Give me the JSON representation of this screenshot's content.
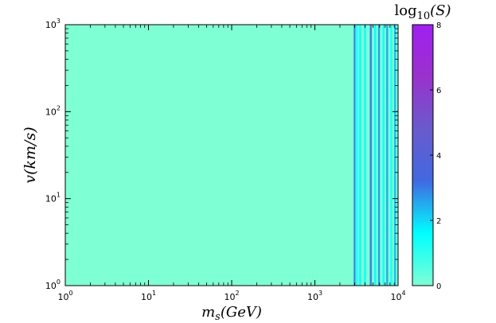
{
  "chart_data": {
    "type": "heatmap",
    "title": "log10(S)",
    "title_parts": {
      "base": "log",
      "sub": "10",
      "arg": "(S)"
    },
    "xlabel": "m_s(GeV)",
    "xlabel_parts": {
      "main": "m",
      "sub": "s",
      "rest": "(GeV)"
    },
    "ylabel": "v(km/s)",
    "x_scale": "log",
    "y_scale": "log",
    "xlim": [
      1,
      10000
    ],
    "ylim": [
      1,
      1000
    ],
    "x_ticks": [
      {
        "value": 1,
        "base": "10",
        "exp": "0"
      },
      {
        "value": 10,
        "base": "10",
        "exp": "1"
      },
      {
        "value": 100,
        "base": "10",
        "exp": "2"
      },
      {
        "value": 1000,
        "base": "10",
        "exp": "3"
      },
      {
        "value": 10000,
        "base": "10",
        "exp": "4"
      }
    ],
    "y_ticks": [
      {
        "value": 1,
        "base": "10",
        "exp": "0"
      },
      {
        "value": 10,
        "base": "10",
        "exp": "1"
      },
      {
        "value": 100,
        "base": "10",
        "exp": "2"
      },
      {
        "value": 1000,
        "base": "10",
        "exp": "3"
      }
    ],
    "colorbar": {
      "min": 0,
      "max": 8,
      "ticks": [
        "0",
        "2",
        "4",
        "6",
        "8"
      ],
      "colors": [
        "#7fffd4",
        "#00ffff",
        "#4169e1",
        "#6a5acd",
        "#9932cc",
        "#a020f0"
      ]
    },
    "background_value": 0,
    "bands": [
      {
        "x": 3000,
        "value": 2.8,
        "y_range": [
          1,
          1000
        ]
      },
      {
        "x": 3200,
        "value": 1.2,
        "y_range": [
          1,
          1000
        ]
      },
      {
        "x": 3500,
        "value": 1.5,
        "y_range": [
          1,
          1000
        ]
      },
      {
        "x": 4000,
        "value": 1.5,
        "y_range": [
          1,
          1000
        ]
      },
      {
        "x": 4700,
        "value": 3.0,
        "y_range": [
          1,
          1000
        ]
      },
      {
        "x": 5300,
        "value": 1.5,
        "y_range": [
          1,
          1000
        ]
      },
      {
        "x": 5900,
        "value": 2.6,
        "y_range": [
          1,
          1000
        ]
      },
      {
        "x": 6700,
        "value": 1.4,
        "y_range": [
          1,
          1000
        ]
      },
      {
        "x": 7400,
        "value": 2.5,
        "y_range": [
          1,
          1000
        ]
      },
      {
        "x": 8300,
        "value": 1.3,
        "y_range": [
          1,
          1000
        ]
      },
      {
        "x": 9200,
        "value": 2.3,
        "y_range": [
          1,
          1000
        ]
      }
    ]
  }
}
